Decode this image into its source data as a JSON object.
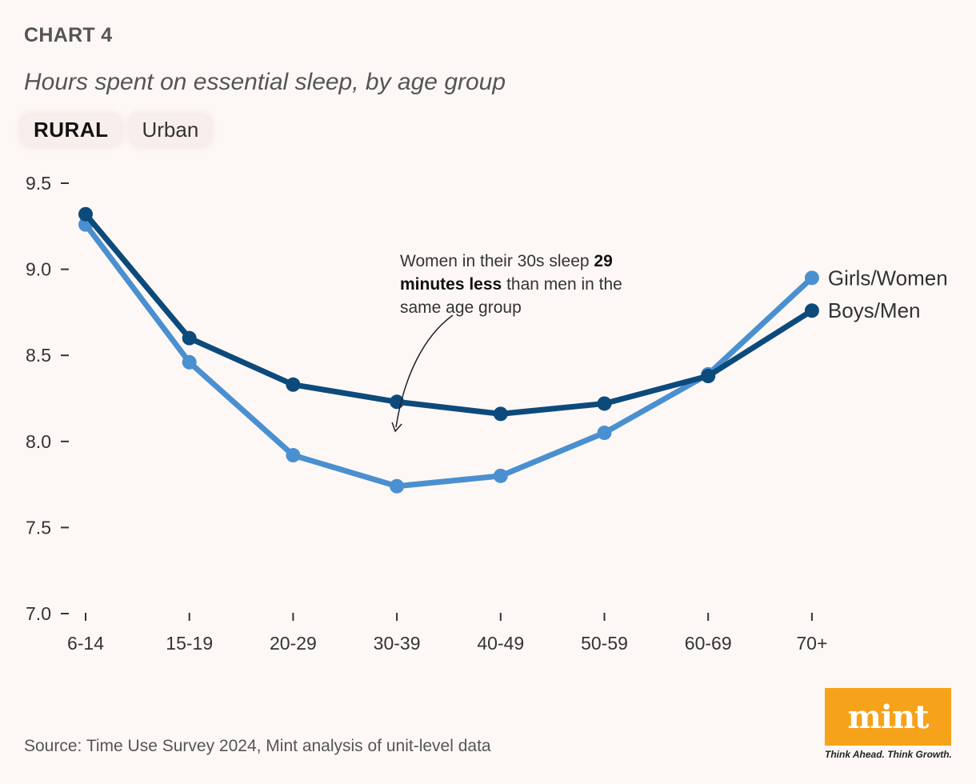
{
  "header": {
    "chart_label": "CHART 4",
    "subtitle": "Hours spent on essential sleep, by age group"
  },
  "tabs": [
    {
      "label": "RURAL",
      "active": true
    },
    {
      "label": "Urban",
      "active": false
    }
  ],
  "annotation": {
    "part1": "Women in their 30s sleep ",
    "bold": "29 minutes less",
    "part2": " than men in the same age group",
    "target_category": "30-39"
  },
  "source": "Source: Time Use Survey 2024, Mint analysis of unit-level data",
  "logo": {
    "text": "mint",
    "tagline": "Think Ahead. Think Growth.",
    "color": "#f7a21b"
  },
  "chart_data": {
    "type": "line",
    "title": "Hours spent on essential sleep, by age group",
    "xlabel": "",
    "ylabel": "",
    "categories": [
      "6-14",
      "15-19",
      "20-29",
      "30-39",
      "40-49",
      "50-59",
      "60-69",
      "70+"
    ],
    "ylim": [
      7.0,
      9.5
    ],
    "yticks": [
      7.0,
      7.5,
      8.0,
      8.5,
      9.0,
      9.5
    ],
    "ytick_labels": [
      "7.0",
      "7.5",
      "8.0",
      "8.5",
      "9.0",
      "9.5"
    ],
    "grid": false,
    "legend_placement": "right, at line ends",
    "series": [
      {
        "name": "Girls/Women",
        "color": "#4a90d0",
        "values": [
          9.26,
          8.46,
          7.92,
          7.74,
          7.8,
          8.05,
          8.39,
          8.95
        ]
      },
      {
        "name": "Boys/Men",
        "color": "#0d4a7c",
        "values": [
          9.32,
          8.6,
          8.33,
          8.23,
          8.16,
          8.22,
          8.38,
          8.76
        ]
      }
    ]
  }
}
